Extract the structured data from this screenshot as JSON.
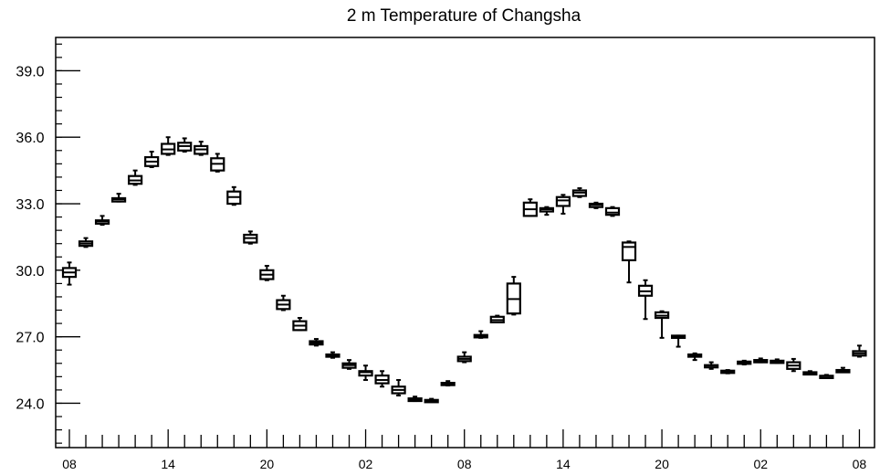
{
  "chart_data": {
    "type": "boxplot",
    "title": "2 m Temperature of Changsha",
    "xlabel": "",
    "ylabel": "",
    "ylim": [
      22.0,
      40.5
    ],
    "yticks": [
      {
        "value": 24.0,
        "label": "24.0"
      },
      {
        "value": 27.0,
        "label": "27.0"
      },
      {
        "value": 30.0,
        "label": "30.0"
      },
      {
        "value": 33.0,
        "label": "33.0"
      },
      {
        "value": 36.0,
        "label": "36.0"
      },
      {
        "value": 39.0,
        "label": "39.0"
      }
    ],
    "yminor_step": 0.6,
    "x_count": 49,
    "xtick_labels": [
      {
        "index": 0,
        "label": "08"
      },
      {
        "index": 6,
        "label": "14"
      },
      {
        "index": 12,
        "label": "20"
      },
      {
        "index": 18,
        "label": "02"
      },
      {
        "index": 24,
        "label": "08"
      },
      {
        "index": 30,
        "label": "14"
      },
      {
        "index": 36,
        "label": "20"
      },
      {
        "index": 42,
        "label": "02"
      },
      {
        "index": 48,
        "label": "08"
      }
    ],
    "boxes": [
      {
        "x": 0,
        "min": 29.35,
        "q1": 29.7,
        "median": 29.9,
        "q3": 30.1,
        "max": 30.35
      },
      {
        "x": 1,
        "min": 31.05,
        "q1": 31.1,
        "median": 31.2,
        "q3": 31.3,
        "max": 31.45
      },
      {
        "x": 2,
        "min": 32.05,
        "q1": 32.1,
        "median": 32.2,
        "q3": 32.25,
        "max": 32.45
      },
      {
        "x": 3,
        "min": 33.1,
        "q1": 33.1,
        "median": 33.2,
        "q3": 33.25,
        "max": 33.45
      },
      {
        "x": 4,
        "min": 33.85,
        "q1": 33.9,
        "median": 34.05,
        "q3": 34.25,
        "max": 34.5
      },
      {
        "x": 5,
        "min": 34.65,
        "q1": 34.7,
        "median": 34.9,
        "q3": 35.1,
        "max": 35.35
      },
      {
        "x": 6,
        "min": 35.2,
        "q1": 35.25,
        "median": 35.45,
        "q3": 35.7,
        "max": 36.0
      },
      {
        "x": 7,
        "min": 35.35,
        "q1": 35.4,
        "median": 35.6,
        "q3": 35.75,
        "max": 35.95
      },
      {
        "x": 8,
        "min": 35.2,
        "q1": 35.25,
        "median": 35.45,
        "q3": 35.6,
        "max": 35.8
      },
      {
        "x": 9,
        "min": 34.45,
        "q1": 34.5,
        "median": 34.8,
        "q3": 35.05,
        "max": 35.25
      },
      {
        "x": 10,
        "min": 32.95,
        "q1": 33.0,
        "median": 33.3,
        "q3": 33.55,
        "max": 33.75
      },
      {
        "x": 11,
        "min": 31.2,
        "q1": 31.25,
        "median": 31.45,
        "q3": 31.6,
        "max": 31.75
      },
      {
        "x": 12,
        "min": 29.55,
        "q1": 29.6,
        "median": 29.8,
        "q3": 30.0,
        "max": 30.2
      },
      {
        "x": 13,
        "min": 28.2,
        "q1": 28.25,
        "median": 28.45,
        "q3": 28.65,
        "max": 28.85
      },
      {
        "x": 14,
        "min": 27.3,
        "q1": 27.3,
        "median": 27.5,
        "q3": 27.7,
        "max": 27.85
      },
      {
        "x": 15,
        "min": 26.6,
        "q1": 26.65,
        "median": 26.72,
        "q3": 26.8,
        "max": 26.9
      },
      {
        "x": 16,
        "min": 26.05,
        "q1": 26.1,
        "median": 26.15,
        "q3": 26.2,
        "max": 26.3
      },
      {
        "x": 17,
        "min": 25.55,
        "q1": 25.6,
        "median": 25.72,
        "q3": 25.8,
        "max": 25.95
      },
      {
        "x": 18,
        "min": 25.05,
        "q1": 25.25,
        "median": 25.4,
        "q3": 25.45,
        "max": 25.7
      },
      {
        "x": 19,
        "min": 24.75,
        "q1": 24.9,
        "median": 25.05,
        "q3": 25.25,
        "max": 25.45
      },
      {
        "x": 20,
        "min": 24.35,
        "q1": 24.45,
        "median": 24.6,
        "q3": 24.75,
        "max": 25.05
      },
      {
        "x": 21,
        "min": 24.1,
        "q1": 24.1,
        "median": 24.17,
        "q3": 24.22,
        "max": 24.3
      },
      {
        "x": 22,
        "min": 24.1,
        "q1": 24.1,
        "median": 24.12,
        "q3": 24.15,
        "max": 24.2
      },
      {
        "x": 23,
        "min": 24.8,
        "q1": 24.82,
        "median": 24.87,
        "q3": 24.92,
        "max": 25.0
      },
      {
        "x": 24,
        "min": 25.85,
        "q1": 25.9,
        "median": 26.0,
        "q3": 26.1,
        "max": 26.3
      },
      {
        "x": 25,
        "min": 26.95,
        "q1": 26.97,
        "median": 27.02,
        "q3": 27.08,
        "max": 27.25
      },
      {
        "x": 26,
        "min": 27.65,
        "q1": 27.65,
        "median": 27.75,
        "q3": 27.9,
        "max": 27.95
      },
      {
        "x": 27,
        "min": 28.0,
        "q1": 28.05,
        "median": 28.7,
        "q3": 29.4,
        "max": 29.7
      },
      {
        "x": 28,
        "min": 32.45,
        "q1": 32.45,
        "median": 32.75,
        "q3": 33.05,
        "max": 33.2
      },
      {
        "x": 29,
        "min": 32.5,
        "q1": 32.65,
        "median": 32.75,
        "q3": 32.8,
        "max": 32.85
      },
      {
        "x": 30,
        "min": 32.55,
        "q1": 32.9,
        "median": 33.15,
        "q3": 33.3,
        "max": 33.4
      },
      {
        "x": 31,
        "min": 33.3,
        "q1": 33.35,
        "median": 33.5,
        "q3": 33.6,
        "max": 33.7
      },
      {
        "x": 32,
        "min": 32.8,
        "q1": 32.85,
        "median": 32.95,
        "q3": 33.0,
        "max": 33.05
      },
      {
        "x": 33,
        "min": 32.45,
        "q1": 32.5,
        "median": 32.6,
        "q3": 32.8,
        "max": 32.85
      },
      {
        "x": 34,
        "min": 29.45,
        "q1": 30.45,
        "median": 31.05,
        "q3": 31.25,
        "max": 31.3
      },
      {
        "x": 35,
        "min": 27.8,
        "q1": 28.85,
        "median": 29.05,
        "q3": 29.3,
        "max": 29.55
      },
      {
        "x": 36,
        "min": 26.95,
        "q1": 27.85,
        "median": 27.95,
        "q3": 28.1,
        "max": 28.15
      },
      {
        "x": 37,
        "min": 26.55,
        "q1": 26.95,
        "median": 27.0,
        "q3": 27.05,
        "max": 27.05
      },
      {
        "x": 38,
        "min": 25.95,
        "q1": 26.1,
        "median": 26.15,
        "q3": 26.2,
        "max": 26.25
      },
      {
        "x": 39,
        "min": 25.55,
        "q1": 25.65,
        "median": 25.7,
        "q3": 25.72,
        "max": 25.85
      },
      {
        "x": 40,
        "min": 25.35,
        "q1": 25.38,
        "median": 25.42,
        "q3": 25.47,
        "max": 25.5
      },
      {
        "x": 41,
        "min": 25.75,
        "q1": 25.78,
        "median": 25.82,
        "q3": 25.88,
        "max": 25.92
      },
      {
        "x": 42,
        "min": 25.85,
        "q1": 25.88,
        "median": 25.92,
        "q3": 25.95,
        "max": 26.02
      },
      {
        "x": 43,
        "min": 25.82,
        "q1": 25.85,
        "median": 25.88,
        "q3": 25.92,
        "max": 25.98
      },
      {
        "x": 44,
        "min": 25.45,
        "q1": 25.55,
        "median": 25.7,
        "q3": 25.85,
        "max": 26.0
      },
      {
        "x": 45,
        "min": 25.3,
        "q1": 25.33,
        "median": 25.37,
        "q3": 25.4,
        "max": 25.45
      },
      {
        "x": 46,
        "min": 25.18,
        "q1": 25.2,
        "median": 25.22,
        "q3": 25.24,
        "max": 25.28
      },
      {
        "x": 47,
        "min": 25.4,
        "q1": 25.42,
        "median": 25.45,
        "q3": 25.5,
        "max": 25.6
      },
      {
        "x": 48,
        "min": 26.1,
        "q1": 26.15,
        "median": 26.25,
        "q3": 26.35,
        "max": 26.6
      }
    ],
    "grid": false,
    "legend": "none",
    "colors": {
      "ink": "#000000",
      "background": "#ffffff"
    }
  }
}
